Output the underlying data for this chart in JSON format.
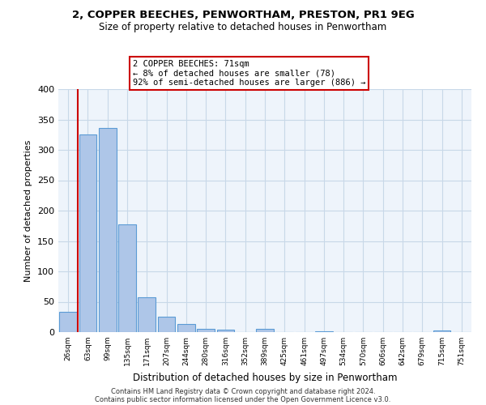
{
  "title1": "2, COPPER BEECHES, PENWORTHAM, PRESTON, PR1 9EG",
  "title2": "Size of property relative to detached houses in Penwortham",
  "xlabel": "Distribution of detached houses by size in Penwortham",
  "ylabel": "Number of detached properties",
  "categories": [
    "26sqm",
    "63sqm",
    "99sqm",
    "135sqm",
    "171sqm",
    "207sqm",
    "244sqm",
    "280sqm",
    "316sqm",
    "352sqm",
    "389sqm",
    "425sqm",
    "461sqm",
    "497sqm",
    "534sqm",
    "570sqm",
    "606sqm",
    "642sqm",
    "679sqm",
    "715sqm",
    "751sqm"
  ],
  "values": [
    33,
    325,
    336,
    178,
    57,
    25,
    14,
    5,
    4,
    0,
    5,
    0,
    0,
    2,
    0,
    0,
    0,
    0,
    0,
    3,
    0
  ],
  "bar_color": "#aec6e8",
  "bar_edge_color": "#5b9bd5",
  "annotation_text": "2 COPPER BEECHES: 71sqm\n← 8% of detached houses are smaller (78)\n92% of semi-detached houses are larger (886) →",
  "annotation_box_color": "#ffffff",
  "annotation_box_edge_color": "#cc0000",
  "property_line_color": "#cc0000",
  "grid_color": "#c8d8e8",
  "background_color": "#eef4fb",
  "footer1": "Contains HM Land Registry data © Crown copyright and database right 2024.",
  "footer2": "Contains public sector information licensed under the Open Government Licence v3.0.",
  "ylim": [
    0,
    400
  ],
  "yticks": [
    0,
    50,
    100,
    150,
    200,
    250,
    300,
    350,
    400
  ]
}
